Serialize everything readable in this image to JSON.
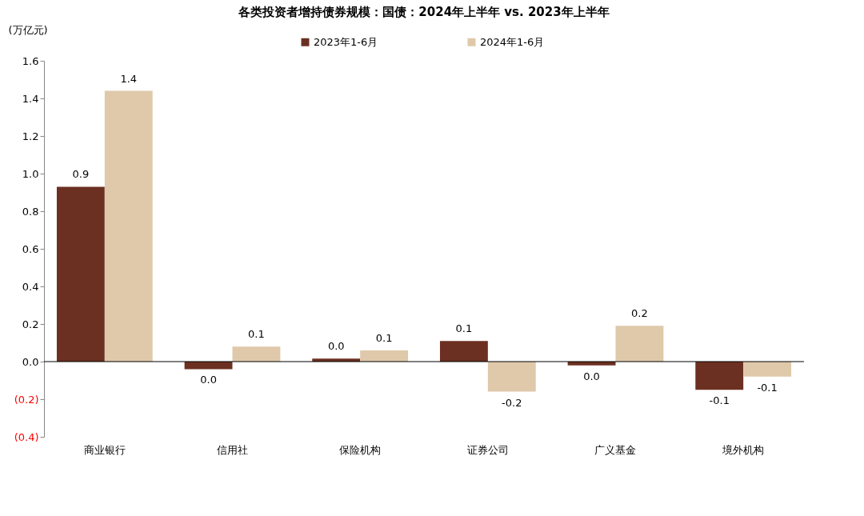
{
  "chart_data": {
    "type": "bar",
    "title": "各类投资者增持债券规模：国债：2024年上半年 vs. 2023年上半年",
    "ylabel": "(万亿元)",
    "categories": [
      "商业银行",
      "信用社",
      "保险机构",
      "证券公司",
      "广义基金",
      "境外机构"
    ],
    "series": [
      {
        "name": "2023年1-6月",
        "color": "#6b3021",
        "values": [
          0.93,
          -0.04,
          0.016,
          0.11,
          -0.02,
          -0.15
        ],
        "value_labels": [
          "0.9",
          "0.0",
          "0.0",
          "0.1",
          "0.0",
          "-0.1"
        ]
      },
      {
        "name": "2024年1-6月",
        "color": "#dfc9aa",
        "values": [
          1.44,
          0.08,
          0.06,
          -0.16,
          0.19,
          -0.08
        ],
        "value_labels": [
          "1.4",
          "0.1",
          "0.1",
          "-0.2",
          "0.2",
          "-0.1"
        ]
      }
    ],
    "ylim": [
      -0.4,
      1.6
    ],
    "yticks": [
      {
        "value": -0.4,
        "label": "(0.4)"
      },
      {
        "value": -0.2,
        "label": "(0.2)"
      },
      {
        "value": 0,
        "label": "0.0"
      },
      0.2,
      0.4,
      0.6,
      0.8,
      {
        "value": 1,
        "label": "1.0"
      },
      1.2,
      1.4,
      1.6
    ],
    "legend": "top"
  }
}
